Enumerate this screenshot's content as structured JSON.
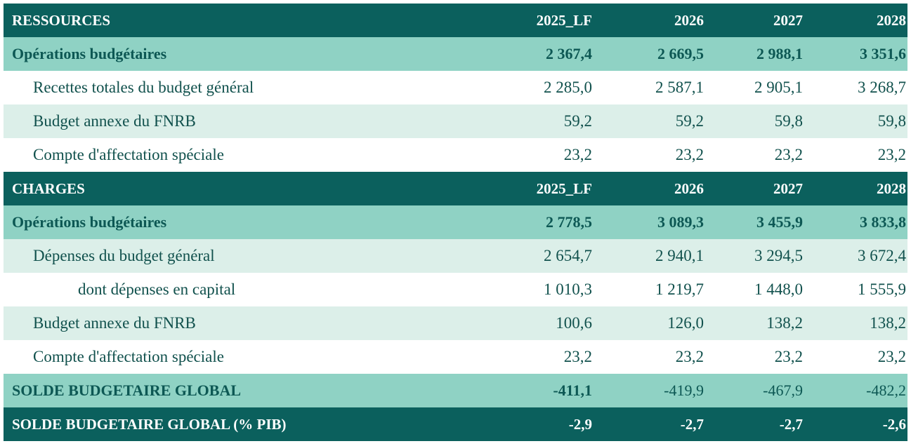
{
  "table": {
    "rows": [
      [
        "RESSOURCES",
        "2025_LF",
        "2026",
        "2027",
        "2028"
      ],
      [
        "Opérations budgétaires",
        "2 367,4",
        "2 669,5",
        "2 988,1",
        "3 351,6"
      ],
      [
        "Recettes totales du budget général",
        "2 285,0",
        "2 587,1",
        "2 905,1",
        "3 268,7"
      ],
      [
        "Budget annexe du FNRB",
        "59,2",
        "59,2",
        "59,8",
        "59,8"
      ],
      [
        "Compte d'affectation spéciale",
        "23,2",
        "23,2",
        "23,2",
        "23,2"
      ],
      [
        "CHARGES",
        "2025_LF",
        "2026",
        "2027",
        "2028"
      ],
      [
        "Opérations budgétaires",
        "2 778,5",
        "3 089,3",
        "3 455,9",
        "3 833,8"
      ],
      [
        "Dépenses du budget général",
        "2 654,7",
        "2 940,1",
        "3 294,5",
        "3 672,4"
      ],
      [
        "dont dépenses en capital",
        "1 010,3",
        "1 219,7",
        "1 448,0",
        "1 555,9"
      ],
      [
        "Budget annexe du FNRB",
        "100,6",
        "126,0",
        "138,2",
        "138,2"
      ],
      [
        "Compte d'affectation spéciale",
        "23,2",
        "23,2",
        "23,2",
        "23,2"
      ],
      [
        "SOLDE BUDGETAIRE GLOBAL",
        "-411,1",
        "-419,9",
        "-467,9",
        "-482,2"
      ],
      [
        "SOLDE BUDGETAIRE GLOBAL (% PIB)",
        "-2,9",
        "-2,7",
        "-2,7",
        "-2,6"
      ]
    ]
  }
}
